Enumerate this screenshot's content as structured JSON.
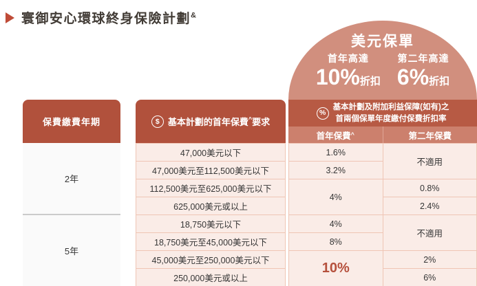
{
  "title": {
    "text": "寰御安心環球終身保險計劃",
    "sup": "&"
  },
  "dome": {
    "title": "美元保單",
    "first_year_label": "首年高達",
    "first_year_value": "10%",
    "first_year_suffix": "折扣",
    "second_year_label": "第二年高達",
    "second_year_value": "6%",
    "second_year_suffix": "折扣"
  },
  "colors": {
    "header_red": "#b1513c",
    "discount_header_red": "#b75a44",
    "subheader_salmon": "#cc806d",
    "dome_salmon": "#d18f7e",
    "row_pink": "#faece7",
    "row_border": "#efc5b4",
    "accent_red": "#b5503c"
  },
  "icons": {
    "dollar": "$",
    "percent": "%"
  },
  "table": {
    "col_payment_term": "保費繳費年期",
    "col_first_year_premium": {
      "text": "基本計劃的首年保費",
      "sup": "^",
      "suffix": "要求"
    },
    "col_discount": {
      "line1": "基本計劃及附加利益保障(如有)之",
      "line2": "首兩個保單年度繳付保費折扣率"
    },
    "sub_first_year": {
      "text": "首年保費",
      "sup": "^"
    },
    "sub_second_year": "第二年保費",
    "groups": [
      {
        "term": "2年",
        "tiers": [
          "47,000美元以下",
          "47,000美元至112,500美元以下",
          "112,500美元至625,000美元以下",
          "625,000美元或以上"
        ],
        "first_year": [
          "1.6%",
          "3.2%",
          "4%"
        ],
        "second_year": [
          "不適用",
          "0.8%",
          "2.4%"
        ]
      },
      {
        "term": "5年",
        "tiers": [
          "18,750美元以下",
          "18,750美元至45,000美元以下",
          "45,000美元至250,000美元以下",
          "250,000美元或以上"
        ],
        "first_year": [
          "4%",
          "8%",
          "10%"
        ],
        "second_year": [
          "不適用",
          "2%",
          "6%"
        ]
      }
    ]
  }
}
